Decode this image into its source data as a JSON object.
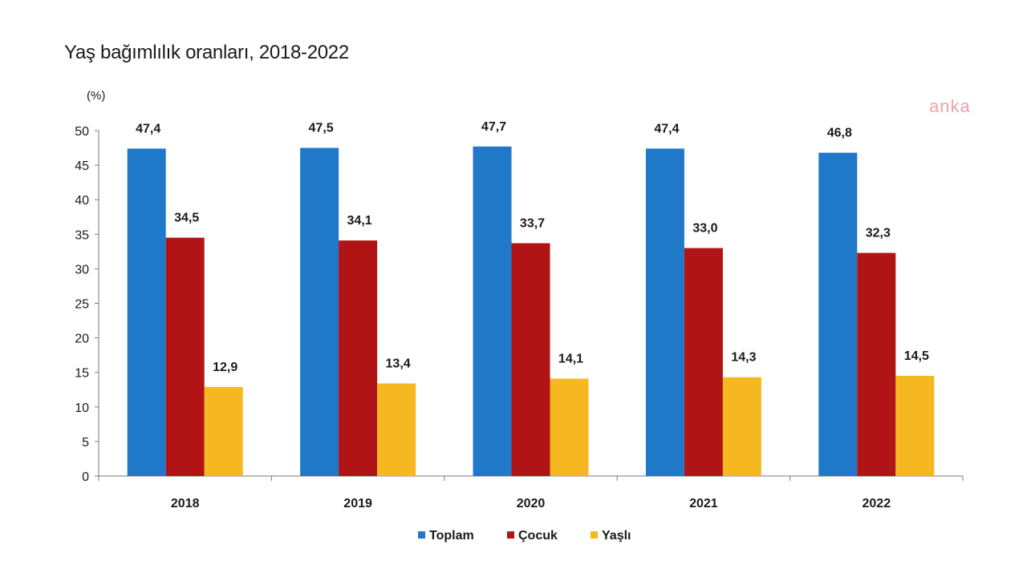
{
  "chart_data": {
    "type": "bar",
    "title": "Yaş bağımlılık oranları, 2018-2022",
    "ylabel": "(%)",
    "xlabel": "",
    "categories": [
      "2018",
      "2019",
      "2020",
      "2021",
      "2022"
    ],
    "series": [
      {
        "name": "Toplam",
        "values": [
          47.4,
          47.5,
          47.7,
          47.4,
          46.8
        ],
        "labels": [
          "47,4",
          "47,5",
          "47,7",
          "47,4",
          "46,8"
        ],
        "color": "#1f78c8"
      },
      {
        "name": "Çocuk",
        "values": [
          34.5,
          34.1,
          33.7,
          33.0,
          32.3
        ],
        "labels": [
          "34,5",
          "34,1",
          "33,7",
          "33,0",
          "32,3"
        ],
        "color": "#b01414"
      },
      {
        "name": "Yaşlı",
        "values": [
          12.9,
          13.4,
          14.1,
          14.3,
          14.5
        ],
        "labels": [
          "12,9",
          "13,4",
          "14,1",
          "14,3",
          "14,5"
        ],
        "color": "#f5b820"
      }
    ],
    "ylim": [
      0,
      50
    ],
    "yticks": [
      0,
      5,
      10,
      15,
      20,
      25,
      30,
      35,
      40,
      45,
      50
    ],
    "grid": false,
    "legend": "bottom"
  },
  "watermark": "anka"
}
